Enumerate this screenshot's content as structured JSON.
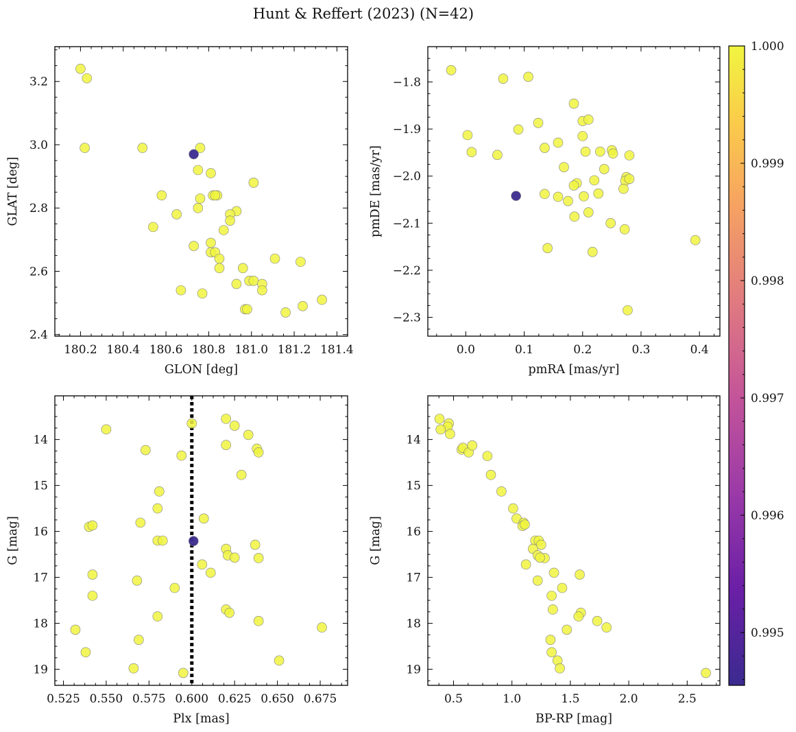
{
  "figure": {
    "title": "Hunt & Reffert (2023) (N=42)",
    "point_fill": "#f0f540",
    "highlight_fill": "#3b2b8f",
    "marker_edge": "#808080",
    "colorbar": {
      "min": 0.99455,
      "max": 1.0,
      "ticks": [
        "0.995",
        "0.996",
        "0.997",
        "0.998",
        "0.999",
        "1.000"
      ],
      "colormap": "plasma"
    }
  },
  "chart_data": [
    {
      "type": "scatter",
      "xlabel": "GLON [deg]",
      "ylabel": "GLAT [deg]",
      "xlim": [
        180.08,
        181.45
      ],
      "ylim": [
        2.395,
        3.31
      ],
      "xticks": [
        "180.2",
        "180.4",
        "180.6",
        "180.8",
        "181.0",
        "181.2",
        "181.4"
      ],
      "yticks": [
        "2.4",
        "2.6",
        "2.8",
        "3.0",
        "3.2"
      ],
      "points": [
        [
          180.2,
          3.24
        ],
        [
          180.23,
          3.21
        ],
        [
          180.22,
          2.99
        ],
        [
          180.49,
          2.99
        ],
        [
          180.58,
          2.84
        ],
        [
          180.54,
          2.74
        ],
        [
          180.65,
          2.78
        ],
        [
          180.76,
          2.99
        ],
        [
          180.75,
          2.92
        ],
        [
          180.81,
          2.91
        ],
        [
          180.76,
          2.83
        ],
        [
          180.82,
          2.84
        ],
        [
          180.84,
          2.84
        ],
        [
          180.83,
          2.84
        ],
        [
          180.75,
          2.8
        ],
        [
          181.01,
          2.88
        ],
        [
          180.93,
          2.79
        ],
        [
          180.9,
          2.78
        ],
        [
          180.9,
          2.76
        ],
        [
          180.87,
          2.73
        ],
        [
          180.73,
          2.68
        ],
        [
          180.81,
          2.69
        ],
        [
          180.81,
          2.66
        ],
        [
          180.83,
          2.66
        ],
        [
          180.85,
          2.64
        ],
        [
          180.85,
          2.61
        ],
        [
          180.96,
          2.61
        ],
        [
          181.11,
          2.64
        ],
        [
          181.23,
          2.63
        ],
        [
          180.99,
          2.57
        ],
        [
          181.01,
          2.57
        ],
        [
          180.93,
          2.56
        ],
        [
          181.05,
          2.56
        ],
        [
          181.05,
          2.54
        ],
        [
          180.67,
          2.54
        ],
        [
          180.77,
          2.53
        ],
        [
          180.97,
          2.48
        ],
        [
          180.98,
          2.48
        ],
        [
          181.16,
          2.47
        ],
        [
          181.24,
          2.49
        ],
        [
          181.33,
          2.51
        ]
      ],
      "highlight": [
        [
          180.73,
          2.97
        ]
      ]
    },
    {
      "type": "scatter",
      "xlabel": "pmRA [mas/yr]",
      "ylabel": "pmDE [mas/yr]",
      "xlim": [
        -0.065,
        0.435
      ],
      "ylim": [
        -2.34,
        -1.725
      ],
      "xticks": [
        "0.0",
        "0.1",
        "0.2",
        "0.3",
        "0.4"
      ],
      "yticks": [
        "−1.8",
        "−1.9",
        "−2.0",
        "−2.1",
        "−2.2",
        "−2.3"
      ],
      "points": [
        [
          -0.025,
          -1.775
        ],
        [
          0.064,
          -1.793
        ],
        [
          0.107,
          -1.789
        ],
        [
          0.003,
          -1.913
        ],
        [
          0.01,
          -1.949
        ],
        [
          0.054,
          -1.955
        ],
        [
          0.09,
          -1.901
        ],
        [
          0.124,
          -1.887
        ],
        [
          0.185,
          -1.846
        ],
        [
          0.2,
          -1.883
        ],
        [
          0.21,
          -1.88
        ],
        [
          0.2,
          -1.915
        ],
        [
          0.135,
          -1.94
        ],
        [
          0.158,
          -1.929
        ],
        [
          0.205,
          -1.948
        ],
        [
          0.23,
          -1.948
        ],
        [
          0.25,
          -1.945
        ],
        [
          0.252,
          -1.952
        ],
        [
          0.28,
          -1.956
        ],
        [
          0.168,
          -1.981
        ],
        [
          0.237,
          -1.985
        ],
        [
          0.22,
          -2.009
        ],
        [
          0.19,
          -2.015
        ],
        [
          0.185,
          -2.02
        ],
        [
          0.175,
          -2.053
        ],
        [
          0.158,
          -2.044
        ],
        [
          0.135,
          -2.038
        ],
        [
          0.202,
          -2.043
        ],
        [
          0.227,
          -2.037
        ],
        [
          0.275,
          -2.002
        ],
        [
          0.273,
          -2.01
        ],
        [
          0.28,
          -2.006
        ],
        [
          0.27,
          -2.027
        ],
        [
          0.186,
          -2.086
        ],
        [
          0.21,
          -2.077
        ],
        [
          0.248,
          -2.1
        ],
        [
          0.272,
          -2.113
        ],
        [
          0.14,
          -2.153
        ],
        [
          0.217,
          -2.161
        ],
        [
          0.393,
          -2.136
        ],
        [
          0.277,
          -2.285
        ]
      ],
      "highlight": [
        [
          0.086,
          -2.042
        ]
      ]
    },
    {
      "type": "scatter",
      "xlabel": "Plx [mas]",
      "ylabel": "G [mag]",
      "xlim": [
        0.52,
        0.691
      ],
      "ylim": [
        19.35,
        13.05
      ],
      "y_inverted": true,
      "xticks": [
        "0.525",
        "0.550",
        "0.575",
        "0.600",
        "0.625",
        "0.650",
        "0.675"
      ],
      "yticks": [
        "14",
        "15",
        "16",
        "17",
        "18",
        "19"
      ],
      "vline": 0.6,
      "points": [
        [
          0.55,
          13.78
        ],
        [
          0.6,
          13.65
        ],
        [
          0.62,
          13.55
        ],
        [
          0.625,
          13.7
        ],
        [
          0.633,
          13.9
        ],
        [
          0.62,
          14.12
        ],
        [
          0.638,
          14.2
        ],
        [
          0.639,
          14.28
        ],
        [
          0.573,
          14.23
        ],
        [
          0.594,
          14.35
        ],
        [
          0.629,
          14.77
        ],
        [
          0.581,
          15.13
        ],
        [
          0.58,
          15.5
        ],
        [
          0.607,
          15.72
        ],
        [
          0.57,
          15.81
        ],
        [
          0.54,
          15.9
        ],
        [
          0.542,
          15.87
        ],
        [
          0.58,
          16.2
        ],
        [
          0.583,
          16.2
        ],
        [
          0.637,
          16.29
        ],
        [
          0.62,
          16.38
        ],
        [
          0.621,
          16.52
        ],
        [
          0.625,
          16.57
        ],
        [
          0.639,
          16.58
        ],
        [
          0.606,
          16.72
        ],
        [
          0.611,
          16.9
        ],
        [
          0.542,
          16.94
        ],
        [
          0.568,
          17.07
        ],
        [
          0.59,
          17.23
        ],
        [
          0.542,
          17.4
        ],
        [
          0.62,
          17.7
        ],
        [
          0.622,
          17.77
        ],
        [
          0.58,
          17.85
        ],
        [
          0.639,
          17.95
        ],
        [
          0.676,
          18.09
        ],
        [
          0.532,
          18.14
        ],
        [
          0.569,
          18.36
        ],
        [
          0.538,
          18.63
        ],
        [
          0.651,
          18.81
        ],
        [
          0.566,
          18.98
        ],
        [
          0.595,
          19.08
        ]
      ],
      "highlight": [
        [
          0.601,
          16.21
        ]
      ]
    },
    {
      "type": "scatter",
      "xlabel": "BP-RP [mag]",
      "ylabel": "G [mag]",
      "xlim": [
        0.28,
        2.78
      ],
      "ylim": [
        19.35,
        13.05
      ],
      "y_inverted": true,
      "xticks": [
        "0.5",
        "1.0",
        "1.5",
        "2.0",
        "2.5"
      ],
      "yticks": [
        "14",
        "15",
        "16",
        "17",
        "18",
        "19"
      ],
      "points": [
        [
          0.38,
          13.55
        ],
        [
          0.46,
          13.65
        ],
        [
          0.45,
          13.72
        ],
        [
          0.39,
          13.78
        ],
        [
          0.47,
          13.88
        ],
        [
          0.57,
          14.22
        ],
        [
          0.58,
          14.18
        ],
        [
          0.63,
          14.28
        ],
        [
          0.66,
          14.13
        ],
        [
          0.79,
          14.36
        ],
        [
          0.82,
          14.77
        ],
        [
          0.91,
          15.13
        ],
        [
          1.01,
          15.5
        ],
        [
          1.04,
          15.72
        ],
        [
          1.1,
          15.81
        ],
        [
          1.09,
          15.88
        ],
        [
          1.11,
          15.85
        ],
        [
          1.2,
          16.2
        ],
        [
          1.23,
          16.2
        ],
        [
          1.25,
          16.29
        ],
        [
          1.18,
          16.38
        ],
        [
          1.22,
          16.52
        ],
        [
          1.28,
          16.58
        ],
        [
          1.24,
          16.57
        ],
        [
          1.12,
          16.72
        ],
        [
          1.36,
          16.9
        ],
        [
          1.58,
          16.94
        ],
        [
          1.22,
          17.07
        ],
        [
          1.43,
          17.23
        ],
        [
          1.34,
          17.4
        ],
        [
          1.35,
          17.7
        ],
        [
          1.59,
          17.77
        ],
        [
          1.57,
          17.85
        ],
        [
          1.73,
          17.95
        ],
        [
          1.81,
          18.09
        ],
        [
          1.47,
          18.14
        ],
        [
          1.33,
          18.36
        ],
        [
          1.34,
          18.63
        ],
        [
          1.39,
          18.81
        ],
        [
          1.41,
          18.98
        ],
        [
          2.66,
          19.08
        ]
      ],
      "highlight": []
    }
  ]
}
